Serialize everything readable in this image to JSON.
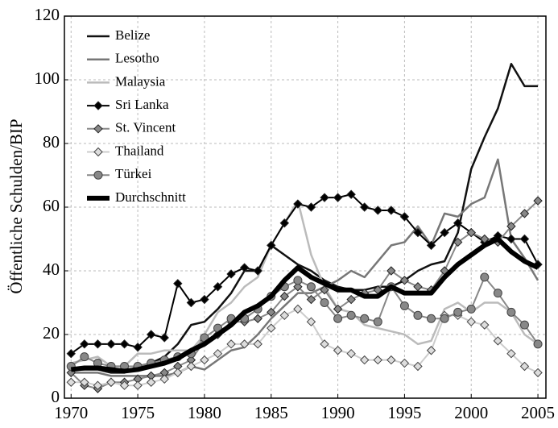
{
  "chart_data": {
    "type": "line",
    "y_label": "Öffentliche Schulden/BIP",
    "x": [
      1970,
      1971,
      1972,
      1973,
      1974,
      1975,
      1976,
      1977,
      1978,
      1979,
      1980,
      1981,
      1982,
      1983,
      1984,
      1985,
      1986,
      1987,
      1988,
      1989,
      1990,
      1991,
      1992,
      1993,
      1994,
      1995,
      1996,
      1997,
      1998,
      1999,
      2000,
      2001,
      2002,
      2003,
      2004,
      2005
    ],
    "xlim": [
      1969.5,
      2005.6
    ],
    "xticks": [
      1970,
      1975,
      1980,
      1985,
      1990,
      1995,
      2000,
      2005
    ],
    "ylim": [
      0,
      120
    ],
    "yticks": [
      0,
      20,
      40,
      60,
      80,
      100,
      120
    ],
    "grid": true,
    "legend": "upper left",
    "series": [
      {
        "name": "Belize",
        "color": "#111111",
        "marker": "none",
        "linewidth": 2.5,
        "values": [
          9,
          9,
          9,
          8,
          8,
          10,
          11,
          13,
          17,
          23,
          24,
          28,
          33,
          40,
          40,
          48,
          45,
          42,
          40,
          37,
          35,
          34,
          34,
          35,
          35,
          37,
          40,
          42,
          43,
          52,
          72,
          82,
          91,
          105,
          98,
          98
        ]
      },
      {
        "name": "Lesotho",
        "color": "#777777",
        "marker": "none",
        "linewidth": 2.5,
        "values": [
          8,
          8,
          8,
          7,
          7,
          7,
          7,
          7,
          8,
          10,
          9,
          12,
          15,
          16,
          20,
          25,
          29,
          33,
          33,
          35,
          37,
          40,
          38,
          43,
          48,
          49,
          54,
          48,
          58,
          57,
          61,
          63,
          75,
          50,
          44,
          37
        ]
      },
      {
        "name": "Malaysia",
        "color": "#bbbbbb",
        "marker": "none",
        "linewidth": 2.5,
        "values": [
          11,
          12,
          13,
          10,
          10,
          14,
          14,
          15,
          15,
          15,
          20,
          27,
          30,
          35,
          38,
          48,
          55,
          62,
          45,
          35,
          28,
          27,
          23,
          22,
          21,
          20,
          17,
          18,
          28,
          30,
          27,
          30,
          30,
          27,
          20,
          17
        ]
      },
      {
        "name": "Sri Lanka",
        "color": "#000000",
        "marker": "diamond",
        "linewidth": 2,
        "values": [
          14,
          17,
          17,
          17,
          17,
          16,
          20,
          19,
          36,
          30,
          31,
          35,
          39,
          41,
          40,
          48,
          55,
          61,
          60,
          63,
          63,
          64,
          60,
          59,
          59,
          57,
          52,
          48,
          52,
          55,
          52,
          49,
          51,
          50,
          50,
          42
        ]
      },
      {
        "name": "St. Vincent",
        "color": "#888888",
        "marker": "diamond",
        "linewidth": 2,
        "values": [
          8,
          4,
          3,
          5,
          5,
          6,
          7,
          8,
          10,
          12,
          18,
          20,
          24,
          24,
          25,
          27,
          32,
          35,
          31,
          34,
          28,
          31,
          33,
          34,
          40,
          37,
          35,
          34,
          40,
          49,
          52,
          50,
          49,
          54,
          58,
          62
        ]
      },
      {
        "name": "Thailand",
        "color": "#cccccc",
        "marker": "diamond",
        "linewidth": 2,
        "values": [
          5,
          5,
          4,
          5,
          4,
          4,
          5,
          6,
          8,
          10,
          12,
          14,
          17,
          17,
          17,
          22,
          26,
          28,
          24,
          17,
          15,
          14,
          12,
          12,
          12,
          11,
          10,
          15,
          26,
          26,
          24,
          23,
          18,
          14,
          10,
          8
        ]
      },
      {
        "name": "Türkei",
        "color": "#888888",
        "marker": "circle",
        "linewidth": 2,
        "values": [
          10,
          13,
          11,
          10,
          10,
          10,
          11,
          12,
          13,
          14,
          19,
          22,
          25,
          25,
          28,
          32,
          35,
          37,
          35,
          30,
          25,
          26,
          25,
          24,
          35,
          29,
          26,
          25,
          25,
          27,
          28,
          38,
          33,
          27,
          23,
          17
        ]
      },
      {
        "name": "Durchschnitt",
        "color": "#000000",
        "marker": "none",
        "linewidth": 6,
        "values": [
          9,
          9.5,
          9.5,
          9,
          8.5,
          9,
          10,
          11,
          12.5,
          15,
          17,
          20,
          23,
          27,
          29,
          32,
          37,
          41,
          38,
          36,
          34,
          34,
          32,
          32,
          35,
          33,
          33,
          33,
          38,
          42,
          45,
          48,
          50,
          46,
          43,
          41
        ]
      }
    ]
  }
}
